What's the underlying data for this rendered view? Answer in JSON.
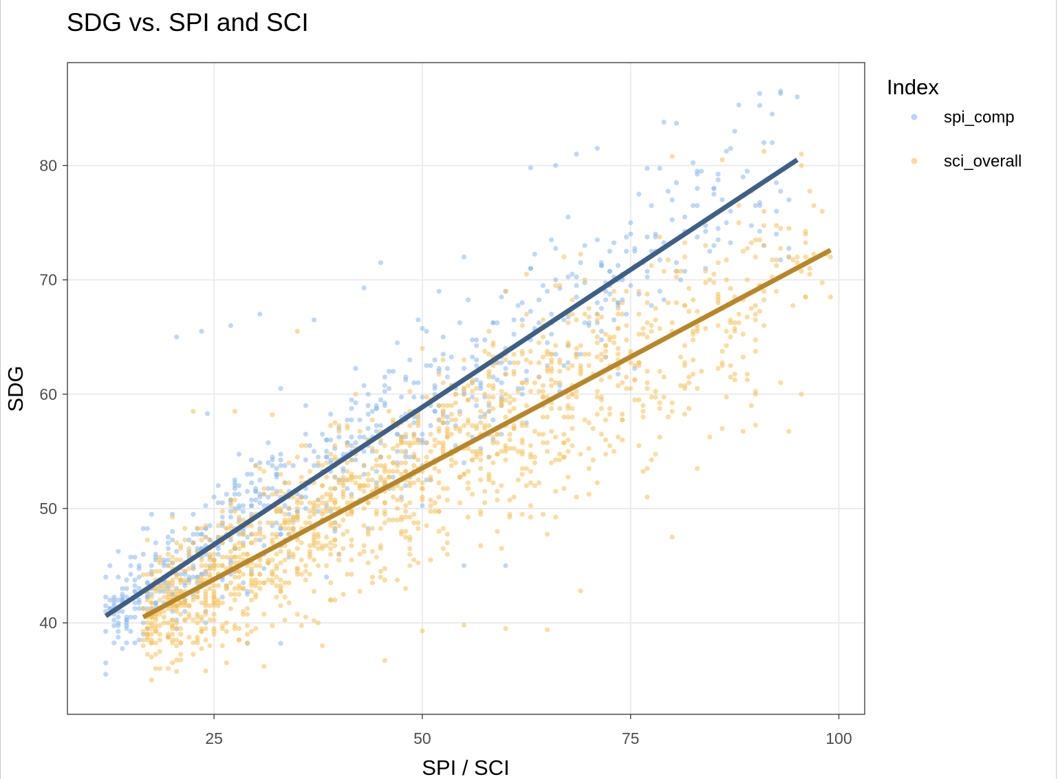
{
  "chart_data": {
    "type": "scatter",
    "title": "SDG vs. SPI and SCI",
    "xlabel": "SPI / SCI",
    "ylabel": "SDG",
    "xlim": [
      7.4,
      103.1
    ],
    "ylim": [
      32,
      89
    ],
    "x_ticks": [
      25,
      50,
      75,
      100
    ],
    "y_ticks": [
      40,
      50,
      60,
      70,
      80
    ],
    "grid": true,
    "legend": {
      "title": "Index",
      "placement": "right",
      "entries": [
        "spi_comp",
        "sci_overall"
      ]
    },
    "series": [
      {
        "name": "spi_comp",
        "color": "#8ab8f0",
        "fit_color": "#3f5f85",
        "fit_line": {
          "x": [
            12,
            95
          ],
          "y": [
            40.6,
            80.5
          ]
        },
        "point_count": 720,
        "x_range": [
          12,
          96
        ],
        "points_sample": [
          [
            12,
            44
          ],
          [
            20.5,
            65
          ],
          [
            23.5,
            65.5
          ],
          [
            24.2,
            58.3
          ],
          [
            27,
            66
          ],
          [
            30.5,
            67
          ],
          [
            33,
            60.5
          ],
          [
            37,
            66.5
          ],
          [
            43,
            69.3
          ],
          [
            45,
            71.5
          ],
          [
            52,
            69
          ],
          [
            55,
            72
          ],
          [
            63,
            79.8
          ],
          [
            66,
            80
          ],
          [
            68.5,
            81
          ],
          [
            71,
            81.5
          ],
          [
            79,
            83.8
          ],
          [
            80.5,
            83.7
          ],
          [
            88,
            85.3
          ],
          [
            90.5,
            86.3
          ],
          [
            93,
            86.3
          ],
          [
            95,
            86
          ],
          [
            92,
            82
          ],
          [
            85,
            78
          ],
          [
            78,
            74
          ],
          [
            70,
            66
          ],
          [
            62,
            60
          ],
          [
            55,
            54
          ],
          [
            48,
            52
          ],
          [
            40,
            46
          ],
          [
            33,
            38.2
          ],
          [
            29,
            38.2
          ],
          [
            60,
            45
          ],
          [
            55,
            45
          ]
        ]
      },
      {
        "name": "sci_overall",
        "color": "#f5c15a",
        "fit_color": "#b8862a",
        "fit_line": {
          "x": [
            16.5,
            99
          ],
          "y": [
            40.5,
            72.6
          ]
        },
        "point_count": 1480,
        "x_range": [
          16.5,
          99
        ],
        "points_sample": [
          [
            16.5,
            44.2
          ],
          [
            19,
            43
          ],
          [
            22.5,
            58.5
          ],
          [
            24,
            35.8
          ],
          [
            27.5,
            58.5
          ],
          [
            31,
            36.2
          ],
          [
            32,
            58.2
          ],
          [
            35,
            65.5
          ],
          [
            37,
            40.2
          ],
          [
            45.5,
            36.7
          ],
          [
            50,
            39.3
          ],
          [
            55,
            39.8
          ],
          [
            60,
            39.5
          ],
          [
            65,
            39.4
          ],
          [
            69,
            42.8
          ],
          [
            70,
            53.5
          ],
          [
            74,
            67
          ],
          [
            80,
            47.5
          ],
          [
            86,
            57
          ],
          [
            90,
            57.3
          ],
          [
            93,
            61
          ],
          [
            96,
            74
          ],
          [
            99,
            68.5
          ],
          [
            97,
            76.5
          ],
          [
            86,
            80.5
          ],
          [
            80,
            80.8
          ],
          [
            67,
            72
          ],
          [
            60,
            69
          ],
          [
            50,
            64
          ],
          [
            42,
            60
          ],
          [
            36,
            55.5
          ]
        ]
      }
    ]
  }
}
